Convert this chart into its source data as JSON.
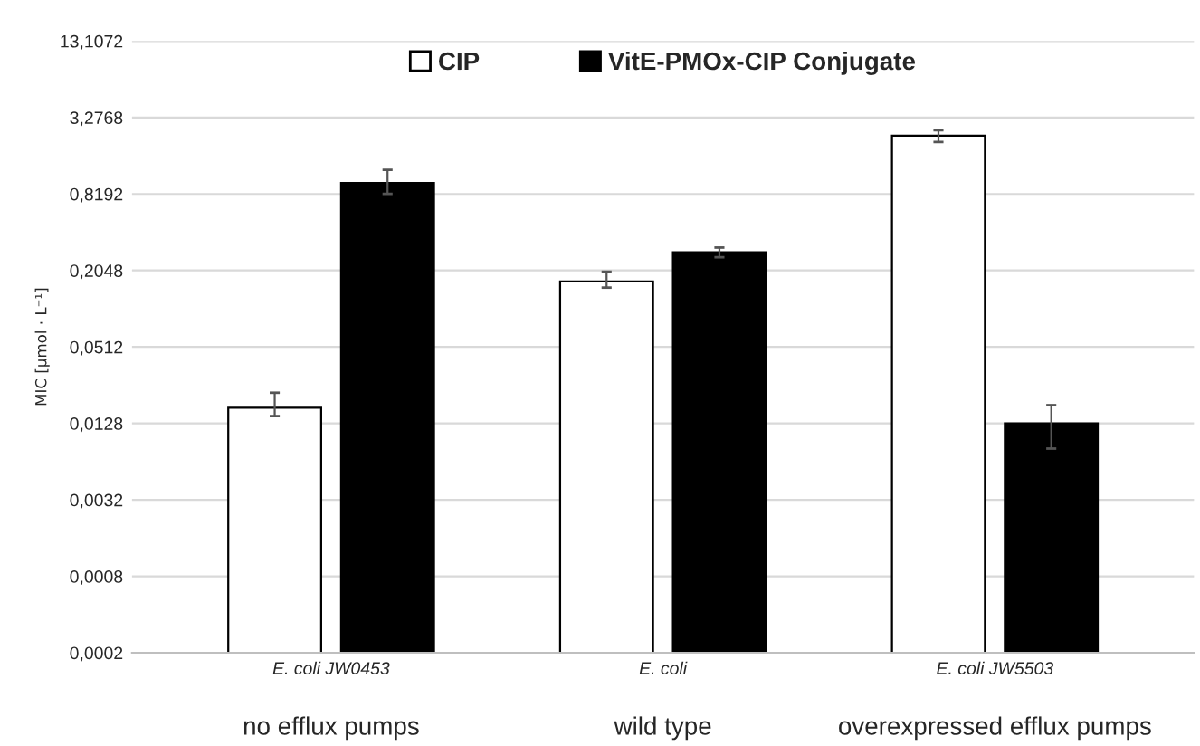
{
  "chart_data": {
    "type": "bar",
    "ylabel": "MIC [µmol · L⁻¹]",
    "log": true,
    "categories": [
      "E. coli JW0453",
      "E. coli",
      "E. coli JW5503"
    ],
    "series": [
      {
        "name": "CIP",
        "color": "#ffffff",
        "values": [
          0.017,
          0.168,
          2.36
        ],
        "errors": [
          [
            0.0146,
            0.0223
          ],
          [
            0.15,
            0.2
          ],
          [
            2.1,
            2.6
          ]
        ]
      },
      {
        "name": "VitE-PMOx-CIP Conjugate",
        "color": "#000000",
        "values": [
          1.0,
          0.285,
          0.0128
        ],
        "errors": [
          [
            0.82,
            1.27
          ],
          [
            0.26,
            0.31
          ],
          [
            0.0081,
            0.0178
          ]
        ]
      }
    ],
    "ylim": [
      0.0002,
      13.1072
    ],
    "yticks": [
      {
        "value": 0.0002,
        "label": "0,0002"
      },
      {
        "value": 0.0008,
        "label": "0,0008"
      },
      {
        "value": 0.0032,
        "label": "0,0032"
      },
      {
        "value": 0.0128,
        "label": "0,0128"
      },
      {
        "value": 0.0512,
        "label": "0,0512"
      },
      {
        "value": 0.2048,
        "label": "0,2048"
      },
      {
        "value": 0.8192,
        "label": "0,8192"
      },
      {
        "value": 3.2768,
        "label": "3,2768"
      },
      {
        "value": 13.1072,
        "label": "13,1072"
      }
    ],
    "grid": "y",
    "legend": "top",
    "annotations": [
      "no efflux pumps",
      "wild type",
      "overexpressed efflux pumps"
    ]
  }
}
